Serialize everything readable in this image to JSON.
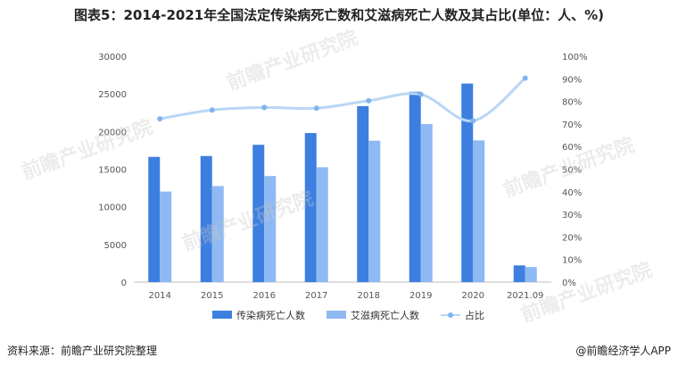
{
  "title": "图表5：2014-2021年全国法定传染病死亡数和艾滋病死亡人数及其占比(单位：人、%)",
  "source": "资料来源：前瞻产业研究院整理",
  "brand": "@前瞻经济学人APP",
  "watermark": "前瞻产业研究院",
  "chart_data": {
    "type": "bar",
    "categories": [
      "2014",
      "2015",
      "2016",
      "2017",
      "2018",
      "2019",
      "2020",
      "2021.09"
    ],
    "series": [
      {
        "name": "传染病死亡人数",
        "kind": "bar",
        "axis": "left",
        "color": "#3d7fe0",
        "values": [
          16629,
          16744,
          18237,
          19796,
          23377,
          25285,
          26374,
          2216
        ]
      },
      {
        "name": "艾滋病死亡人数",
        "kind": "bar",
        "axis": "left",
        "color": "#8fb9f2",
        "values": [
          12030,
          12755,
          14091,
          15251,
          18780,
          20999,
          18819,
          2000
        ]
      },
      {
        "name": "占比",
        "kind": "line",
        "axis": "right",
        "color": "#b9d6f5",
        "values": [
          72.3,
          76.2,
          77.3,
          77.0,
          80.3,
          83.1,
          71.4,
          90.3
        ]
      }
    ],
    "y_left": {
      "min": 0,
      "max": 30000,
      "ticks": [
        "0",
        "5000",
        "10000",
        "15000",
        "20000",
        "25000",
        "30000"
      ]
    },
    "y_right": {
      "min": 0,
      "max": 100,
      "ticks": [
        "0%",
        "10%",
        "20%",
        "30%",
        "40%",
        "50%",
        "60%",
        "70%",
        "80%",
        "90%",
        "100%"
      ]
    },
    "legend_position": "bottom",
    "grid": false
  }
}
